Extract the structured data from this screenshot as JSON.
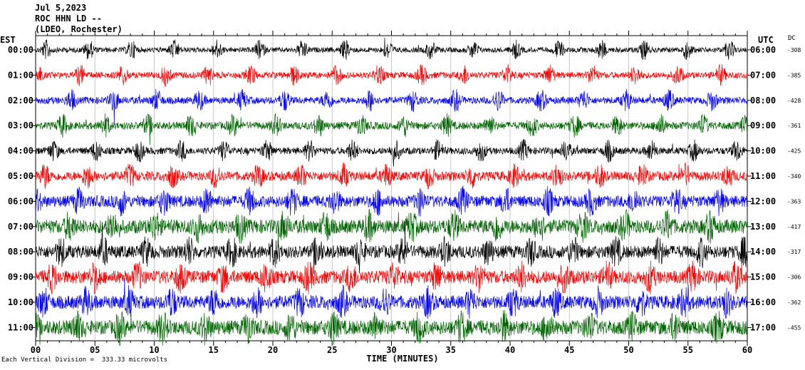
{
  "header": {
    "date": "Jul 5,2023",
    "station": "ROC HHN LD --",
    "network": "(LDEO, Rochester)"
  },
  "left_axis_label": "EST",
  "right_axis_label": "UTC",
  "dc_label": "DC",
  "footer": {
    "scale_note": "Each Vertical Division =  333.33 microvolts"
  },
  "chart_data": {
    "type": "line",
    "title": "",
    "xlabel": "TIME (MINUTES)",
    "xlim": [
      0,
      60
    ],
    "x_ticks": [
      0,
      5,
      10,
      15,
      20,
      25,
      30,
      35,
      40,
      45,
      50,
      55,
      60
    ],
    "x_tick_labels": [
      "00",
      "05",
      "10",
      "15",
      "20",
      "25",
      "30",
      "35",
      "40",
      "45",
      "50",
      "55",
      "60"
    ],
    "grid": true,
    "traces": [
      {
        "est": "00:00",
        "utc": "06:00",
        "dc": "-308",
        "color": "#000000",
        "activity": 0.15
      },
      {
        "est": "01:00",
        "utc": "07:00",
        "dc": "-385",
        "color": "#ff0000",
        "activity": 0.25
      },
      {
        "est": "02:00",
        "utc": "08:00",
        "dc": "-428",
        "color": "#0000ff",
        "activity": 0.3
      },
      {
        "est": "03:00",
        "utc": "09:00",
        "dc": "-361",
        "color": "#006400",
        "activity": 0.35
      },
      {
        "est": "04:00",
        "utc": "10:00",
        "dc": "-425",
        "color": "#000000",
        "activity": 0.3
      },
      {
        "est": "05:00",
        "utc": "11:00",
        "dc": "-340",
        "color": "#ff0000",
        "activity": 0.5
      },
      {
        "est": "06:00",
        "utc": "12:00",
        "dc": "-363",
        "color": "#0000ff",
        "activity": 0.7
      },
      {
        "est": "07:00",
        "utc": "13:00",
        "dc": "-417",
        "color": "#006400",
        "activity": 0.9
      },
      {
        "est": "08:00",
        "utc": "14:00",
        "dc": "-317",
        "color": "#000000",
        "activity": 0.8
      },
      {
        "est": "09:00",
        "utc": "15:00",
        "dc": "-306",
        "color": "#ff0000",
        "activity": 0.85
      },
      {
        "est": "10:00",
        "utc": "16:00",
        "dc": "-362",
        "color": "#0000ff",
        "activity": 0.85
      },
      {
        "est": "11:00",
        "utc": "17:00",
        "dc": "-455",
        "color": "#006400",
        "activity": 0.95
      }
    ]
  }
}
